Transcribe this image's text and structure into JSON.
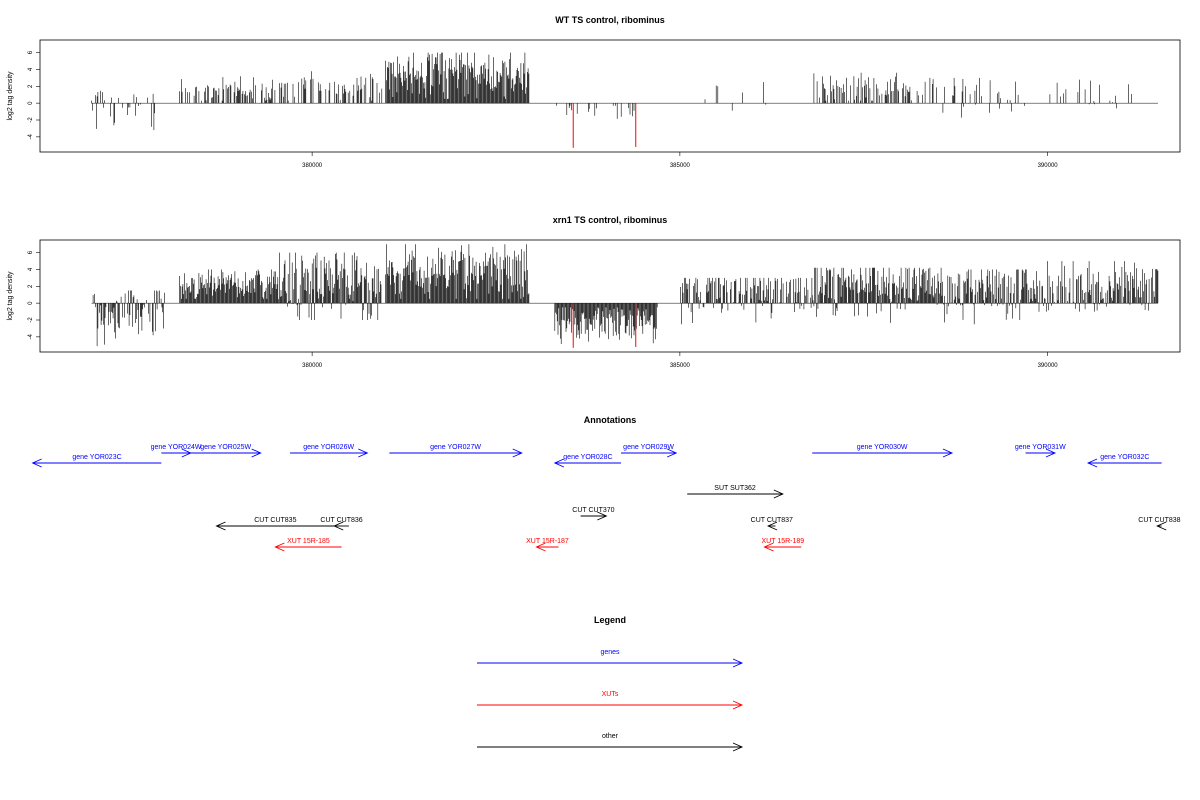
{
  "colors": {
    "gene": "#0000ff",
    "xut": "#ff0000",
    "other": "#000000",
    "signal": "#000000",
    "highlight": "#ff0000"
  },
  "chart_data": [
    {
      "type": "bar",
      "title": "WT TS control, ribominus",
      "ylabel": "log2 tag density",
      "xlim": [
        376300,
        391800
      ],
      "ylim": [
        -5.8,
        7.5
      ],
      "xticks": [
        380000,
        385000,
        390000
      ],
      "xtick_labels": [
        "380000",
        "385000",
        "390000"
      ],
      "yticks": [
        -4,
        -2,
        0,
        2,
        4,
        6
      ],
      "ytick_labels": [
        "-4",
        "-2",
        "0",
        "2",
        "4",
        "6"
      ],
      "baseline": [
        377000,
        391500
      ],
      "highlight_bars": [
        {
          "x": 383550,
          "y": -5.3
        },
        {
          "x": 384400,
          "y": -5.2
        }
      ],
      "signal_segments": [
        {
          "x0": 377000,
          "x1": 377900,
          "density": 0.25,
          "min": -3.2,
          "max": 2.0,
          "mean": -0.6
        },
        {
          "x0": 378200,
          "x1": 379500,
          "density": 0.5,
          "min": 0.3,
          "max": 3.2,
          "mean": 1.6
        },
        {
          "x0": 379500,
          "x1": 380950,
          "density": 0.45,
          "min": 0.3,
          "max": 3.8,
          "mean": 2.0
        },
        {
          "x0": 381000,
          "x1": 382950,
          "density": 1.0,
          "min": 0.5,
          "max": 6.0,
          "mean": 3.5
        },
        {
          "x0": 383300,
          "x1": 384500,
          "density": 0.15,
          "min": -2.2,
          "max": -0.3,
          "mean": -0.9
        },
        {
          "x0": 385200,
          "x1": 386300,
          "density": 0.1,
          "min": -2.2,
          "max": 2.5,
          "mean": 1.0
        },
        {
          "x0": 386800,
          "x1": 388500,
          "density": 0.5,
          "min": 0.3,
          "max": 3.6,
          "mean": 1.8
        },
        {
          "x0": 388500,
          "x1": 389700,
          "density": 0.3,
          "min": -2.4,
          "max": 3.0,
          "mean": 1.0
        },
        {
          "x0": 389900,
          "x1": 391300,
          "density": 0.2,
          "min": -1.8,
          "max": 2.8,
          "mean": 1.0
        }
      ]
    },
    {
      "type": "bar",
      "title": "xrn1 TS control, ribominus",
      "ylabel": "log2 tag density",
      "xlim": [
        376300,
        391800
      ],
      "ylim": [
        -5.8,
        7.5
      ],
      "xticks": [
        380000,
        385000,
        390000
      ],
      "xtick_labels": [
        "380000",
        "385000",
        "390000"
      ],
      "yticks": [
        -4,
        -2,
        0,
        2,
        4,
        6
      ],
      "ytick_labels": [
        "-4",
        "-2",
        "0",
        "2",
        "4",
        "6"
      ],
      "baseline": [
        377000,
        391500
      ],
      "highlight_bars": [
        {
          "x": 383550,
          "y": -5.3
        },
        {
          "x": 384400,
          "y": -5.2
        }
      ],
      "signal_segments": [
        {
          "x0": 377000,
          "x1": 378000,
          "density": 0.8,
          "min": -5.2,
          "max": 1.5,
          "mean": -1.5
        },
        {
          "x0": 378200,
          "x1": 379500,
          "density": 1.0,
          "min": 0.5,
          "max": 4.0,
          "mean": 2.2
        },
        {
          "x0": 379500,
          "x1": 380950,
          "density": 1.0,
          "min": -2.0,
          "max": 6.0,
          "mean": 2.5
        },
        {
          "x0": 381000,
          "x1": 382950,
          "density": 1.0,
          "min": 0.5,
          "max": 7.0,
          "mean": 3.8
        },
        {
          "x0": 383300,
          "x1": 384700,
          "density": 1.0,
          "min": -5.0,
          "max": -0.5,
          "mean": -2.3
        },
        {
          "x0": 385000,
          "x1": 386800,
          "density": 0.8,
          "min": -2.5,
          "max": 3.0,
          "mean": 1.5
        },
        {
          "x0": 386800,
          "x1": 388600,
          "density": 1.0,
          "min": -2.5,
          "max": 4.2,
          "mean": 2.3
        },
        {
          "x0": 388600,
          "x1": 389900,
          "density": 0.9,
          "min": -2.5,
          "max": 4.0,
          "mean": 1.8
        },
        {
          "x0": 389900,
          "x1": 391500,
          "density": 0.8,
          "min": -1.0,
          "max": 5.0,
          "mean": 2.0
        }
      ]
    }
  ],
  "annotations": {
    "title": "Annotations",
    "items": [
      {
        "label": "gene YOR023C",
        "type": "gene",
        "start": 376200,
        "end": 377950,
        "dir": "left",
        "row": 1
      },
      {
        "label": "gene YOR024W",
        "type": "gene",
        "start": 377950,
        "end": 378350,
        "dir": "right",
        "row": 0
      },
      {
        "label": "gene YOR025W",
        "type": "gene",
        "start": 378350,
        "end": 379300,
        "dir": "right",
        "row": 0
      },
      {
        "label": "gene YOR026W",
        "type": "gene",
        "start": 379700,
        "end": 380750,
        "dir": "right",
        "row": 0
      },
      {
        "label": "gene YOR027W",
        "type": "gene",
        "start": 381050,
        "end": 382850,
        "dir": "right",
        "row": 0
      },
      {
        "label": "gene YOR028C",
        "type": "gene",
        "start": 383300,
        "end": 384200,
        "dir": "left",
        "row": 1
      },
      {
        "label": "gene YOR029W",
        "type": "gene",
        "start": 384200,
        "end": 384950,
        "dir": "right",
        "row": 0
      },
      {
        "label": "gene YOR030W",
        "type": "gene",
        "start": 386800,
        "end": 388700,
        "dir": "right",
        "row": 0
      },
      {
        "label": "gene YOR031W",
        "type": "gene",
        "start": 389700,
        "end": 390100,
        "dir": "right",
        "row": 0
      },
      {
        "label": "gene YOR032C",
        "type": "gene",
        "start": 390550,
        "end": 391550,
        "dir": "left",
        "row": 1
      },
      {
        "label": "SUT SUT362",
        "type": "other",
        "start": 385100,
        "end": 386400,
        "dir": "right",
        "row": 2
      },
      {
        "label": "CUT CUT370",
        "type": "other",
        "start": 383650,
        "end": 384000,
        "dir": "right",
        "row": 3
      },
      {
        "label": "CUT CUT835",
        "type": "other",
        "start": 378700,
        "end": 380300,
        "dir": "left",
        "row": 4
      },
      {
        "label": "CUT CUT836",
        "type": "other",
        "start": 380300,
        "end": 380500,
        "dir": "left",
        "row": 4
      },
      {
        "label": "CUT CUT837",
        "type": "other",
        "start": 386200,
        "end": 386300,
        "dir": "left",
        "row": 4
      },
      {
        "label": "CUT CUT838",
        "type": "other",
        "start": 391490,
        "end": 391550,
        "dir": "left",
        "row": 4
      },
      {
        "label": "XUT 15R-185",
        "type": "xut",
        "start": 379500,
        "end": 380400,
        "dir": "left",
        "row": 5
      },
      {
        "label": "XUT 15R-187",
        "type": "xut",
        "start": 383050,
        "end": 383350,
        "dir": "left",
        "row": 5
      },
      {
        "label": "XUT 15R-189",
        "type": "xut",
        "start": 386150,
        "end": 386650,
        "dir": "left",
        "row": 5
      }
    ]
  },
  "legend": {
    "title": "Legend",
    "items": [
      {
        "label": "genes",
        "type": "gene"
      },
      {
        "label": "XUTs",
        "type": "xut"
      },
      {
        "label": "other",
        "type": "other"
      }
    ]
  }
}
